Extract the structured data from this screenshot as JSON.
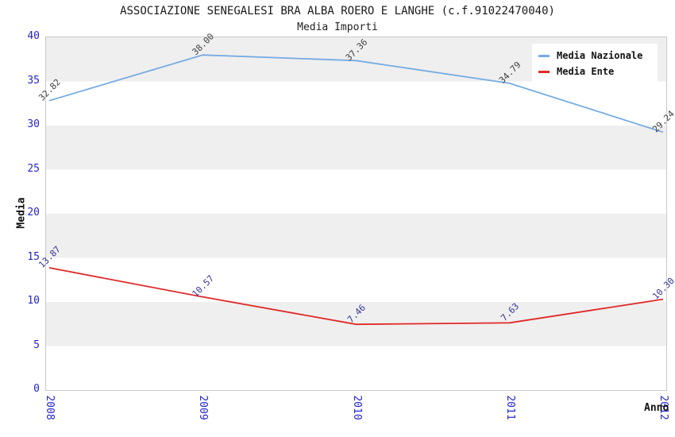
{
  "title": "ASSOCIAZIONE SENEGALESI BRA ALBA ROERO E LANGHE (c.f.91022470040)",
  "subtitle": "Media Importi",
  "axes": {
    "y_label": "Media",
    "x_label": "Anno",
    "y_ticks": [
      0,
      5,
      10,
      15,
      20,
      25,
      30,
      35,
      40
    ],
    "x_ticks": [
      "2008",
      "2009",
      "2010",
      "2011",
      "2012"
    ],
    "tick_color": "#2525cf"
  },
  "legend": [
    {
      "label": "Media Nazionale",
      "color": "#76abe3"
    },
    {
      "label": "Media Ente",
      "color": "#e02828"
    }
  ],
  "plot_style": {
    "band_color": "#efefef",
    "band_alt_color": "#ffffff",
    "border_color": "#c9c9c9"
  },
  "chart_data": {
    "type": "line",
    "title": "ASSOCIAZIONE SENEGALESI BRA ALBA ROERO E LANGHE (c.f.91022470040)",
    "subtitle": "Media Importi",
    "xlabel": "Anno",
    "ylabel": "Media",
    "x": [
      "2008",
      "2009",
      "2010",
      "2011",
      "2012"
    ],
    "ylim": [
      0,
      40
    ],
    "grid": "horizontal-bands",
    "legend_position": "top-right",
    "series": [
      {
        "name": "Media Nazionale",
        "values": [
          32.82,
          38.0,
          37.36,
          34.79,
          29.24
        ],
        "color": "#76abe3",
        "label_color": "#3f3f3f"
      },
      {
        "name": "Media Ente",
        "values": [
          13.87,
          10.57,
          7.46,
          7.63,
          10.3
        ],
        "color": "#e02828",
        "label_color": "#333399"
      }
    ]
  }
}
